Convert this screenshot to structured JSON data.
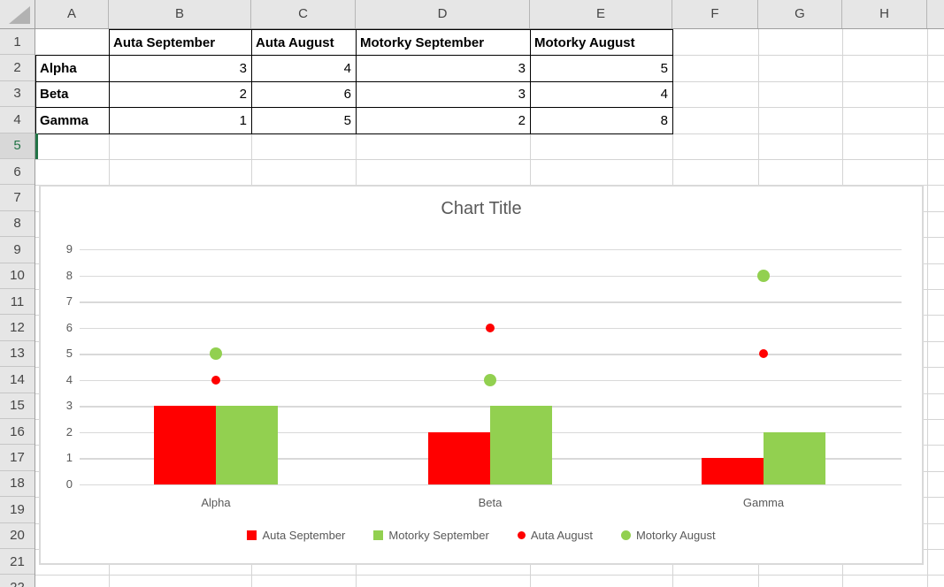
{
  "sheet": {
    "column_headers": [
      "A",
      "B",
      "C",
      "D",
      "E",
      "F",
      "G",
      "H"
    ],
    "row_count": 22,
    "selected_row": 5,
    "table": {
      "col_headers": [
        "Auta September",
        "Auta August",
        "Motorky September",
        "Motorky August"
      ],
      "rows": [
        {
          "label": "Alpha",
          "values": [
            3,
            4,
            3,
            5
          ]
        },
        {
          "label": "Beta",
          "values": [
            2,
            6,
            3,
            4
          ]
        },
        {
          "label": "Gamma",
          "values": [
            1,
            5,
            2,
            8
          ]
        }
      ]
    }
  },
  "chart_data": {
    "type": "combo-bar-scatter",
    "title": "Chart Title",
    "categories": [
      "Alpha",
      "Beta",
      "Gamma"
    ],
    "series": [
      {
        "name": "Auta September",
        "type": "bar",
        "color": "#FF0000",
        "values": [
          3,
          2,
          1
        ]
      },
      {
        "name": "Motorky September",
        "type": "bar",
        "color": "#92D050",
        "values": [
          3,
          3,
          2
        ]
      },
      {
        "name": "Auta August",
        "type": "scatter",
        "color": "#FF0000",
        "values": [
          4,
          6,
          5
        ]
      },
      {
        "name": "Motorky August",
        "type": "scatter",
        "color": "#92D050",
        "values": [
          5,
          4,
          8
        ]
      }
    ],
    "y_ticks": [
      0,
      1,
      2,
      3,
      4,
      5,
      6,
      7,
      8,
      9
    ],
    "ylim": [
      0,
      9
    ],
    "grid": true,
    "legend_position": "bottom"
  },
  "colors": {
    "series_red": "#FF0000",
    "series_green": "#92D050",
    "excel_selection_green": "#217346",
    "chart_text_gray": "#595959",
    "sheet_gridline": "#D4D4D4",
    "header_fill": "#E6E6E6"
  }
}
